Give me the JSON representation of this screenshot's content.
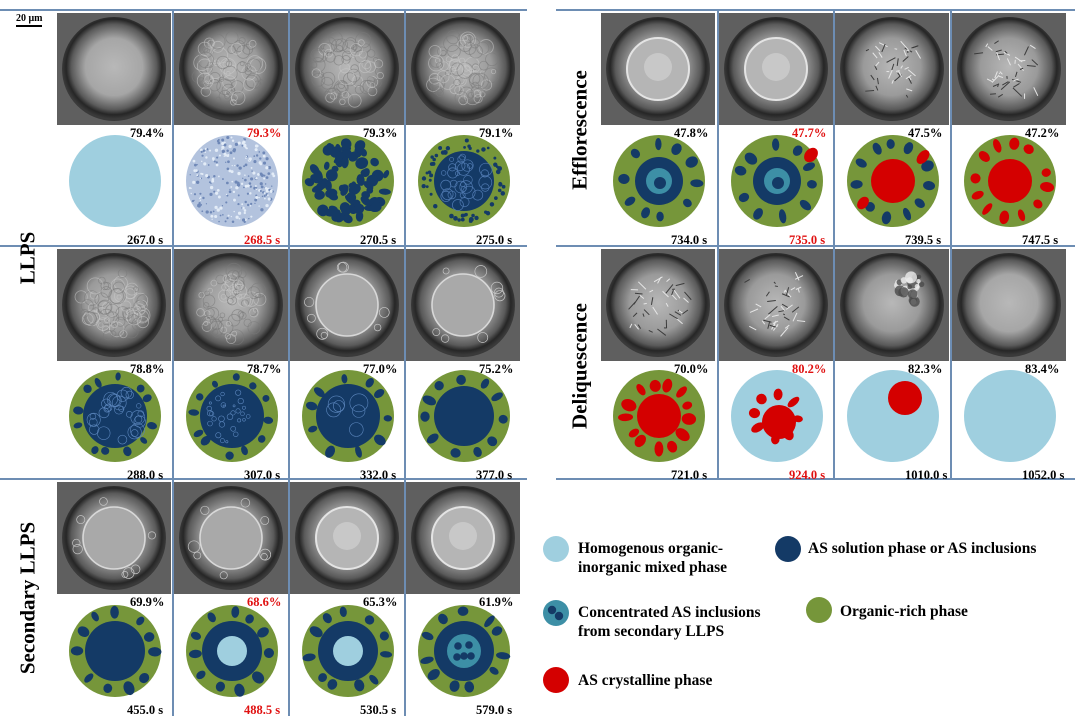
{
  "scale_bar": "20 μm",
  "section_labels": {
    "llps": "LLPS",
    "secondary_llps": "Secondary LLPS",
    "efflorescence": "Efflorescence",
    "deliquescence": "Deliquescence"
  },
  "colors": {
    "homogenous": "#9fcfdf",
    "as_solution": "#143a66",
    "concentrated": "#3d8fa6",
    "organic": "#76963a",
    "crystal": "#d40000",
    "grid_line": "#6d8db3",
    "highlight_text": "#e01010"
  },
  "panels": {
    "llps": [
      {
        "rh": "79.4%",
        "time": "267.0 s",
        "rh_red": false,
        "time_red": false
      },
      {
        "rh": "79.3%",
        "time": "268.5 s",
        "rh_red": true,
        "time_red": true
      },
      {
        "rh": "79.3%",
        "time": "270.5 s",
        "rh_red": false,
        "time_red": false
      },
      {
        "rh": "79.1%",
        "time": "275.0 s",
        "rh_red": false,
        "time_red": false
      },
      {
        "rh": "78.8%",
        "time": "288.0 s",
        "rh_red": false,
        "time_red": false
      },
      {
        "rh": "78.7%",
        "time": "307.0 s",
        "rh_red": false,
        "time_red": false
      },
      {
        "rh": "77.0%",
        "time": "332.0 s",
        "rh_red": false,
        "time_red": false
      },
      {
        "rh": "75.2%",
        "time": "377.0 s",
        "rh_red": false,
        "time_red": false
      }
    ],
    "secondary": [
      {
        "rh": "69.9%",
        "time": "455.0 s",
        "rh_red": false,
        "time_red": false
      },
      {
        "rh": "68.6%",
        "time": "488.5 s",
        "rh_red": true,
        "time_red": true
      },
      {
        "rh": "65.3%",
        "time": "530.5 s",
        "rh_red": false,
        "time_red": false
      },
      {
        "rh": "61.9%",
        "time": "579.0 s",
        "rh_red": false,
        "time_red": false
      }
    ],
    "efflorescence": [
      {
        "rh": "47.8%",
        "time": "734.0 s",
        "rh_red": false,
        "time_red": false
      },
      {
        "rh": "47.7%",
        "time": "735.0 s",
        "rh_red": true,
        "time_red": true
      },
      {
        "rh": "47.5%",
        "time": "739.5 s",
        "rh_red": false,
        "time_red": false
      },
      {
        "rh": "47.2%",
        "time": "747.5 s",
        "rh_red": false,
        "time_red": false
      }
    ],
    "deliquescence": [
      {
        "rh": "70.0%",
        "time": "721.0 s",
        "rh_red": false,
        "time_red": false
      },
      {
        "rh": "80.2%",
        "time": "924.0 s",
        "rh_red": true,
        "time_red": true
      },
      {
        "rh": "82.3%",
        "time": "1010.0 s",
        "rh_red": false,
        "time_red": false
      },
      {
        "rh": "83.4%",
        "time": "1052.0 s",
        "rh_red": false,
        "time_red": false
      }
    ]
  },
  "legend": {
    "homogenous": "Homogenous organic-inorganic mixed phase",
    "homogenous_l1": "Homogenous organic-",
    "homogenous_l2": "inorganic mixed phase",
    "as_solution": "AS solution phase or AS inclusions",
    "concentrated_l1": "Concentrated AS inclusions",
    "concentrated_l2": "from secondary LLPS",
    "organic": "Organic-rich phase",
    "crystal": "AS crystalline phase"
  }
}
